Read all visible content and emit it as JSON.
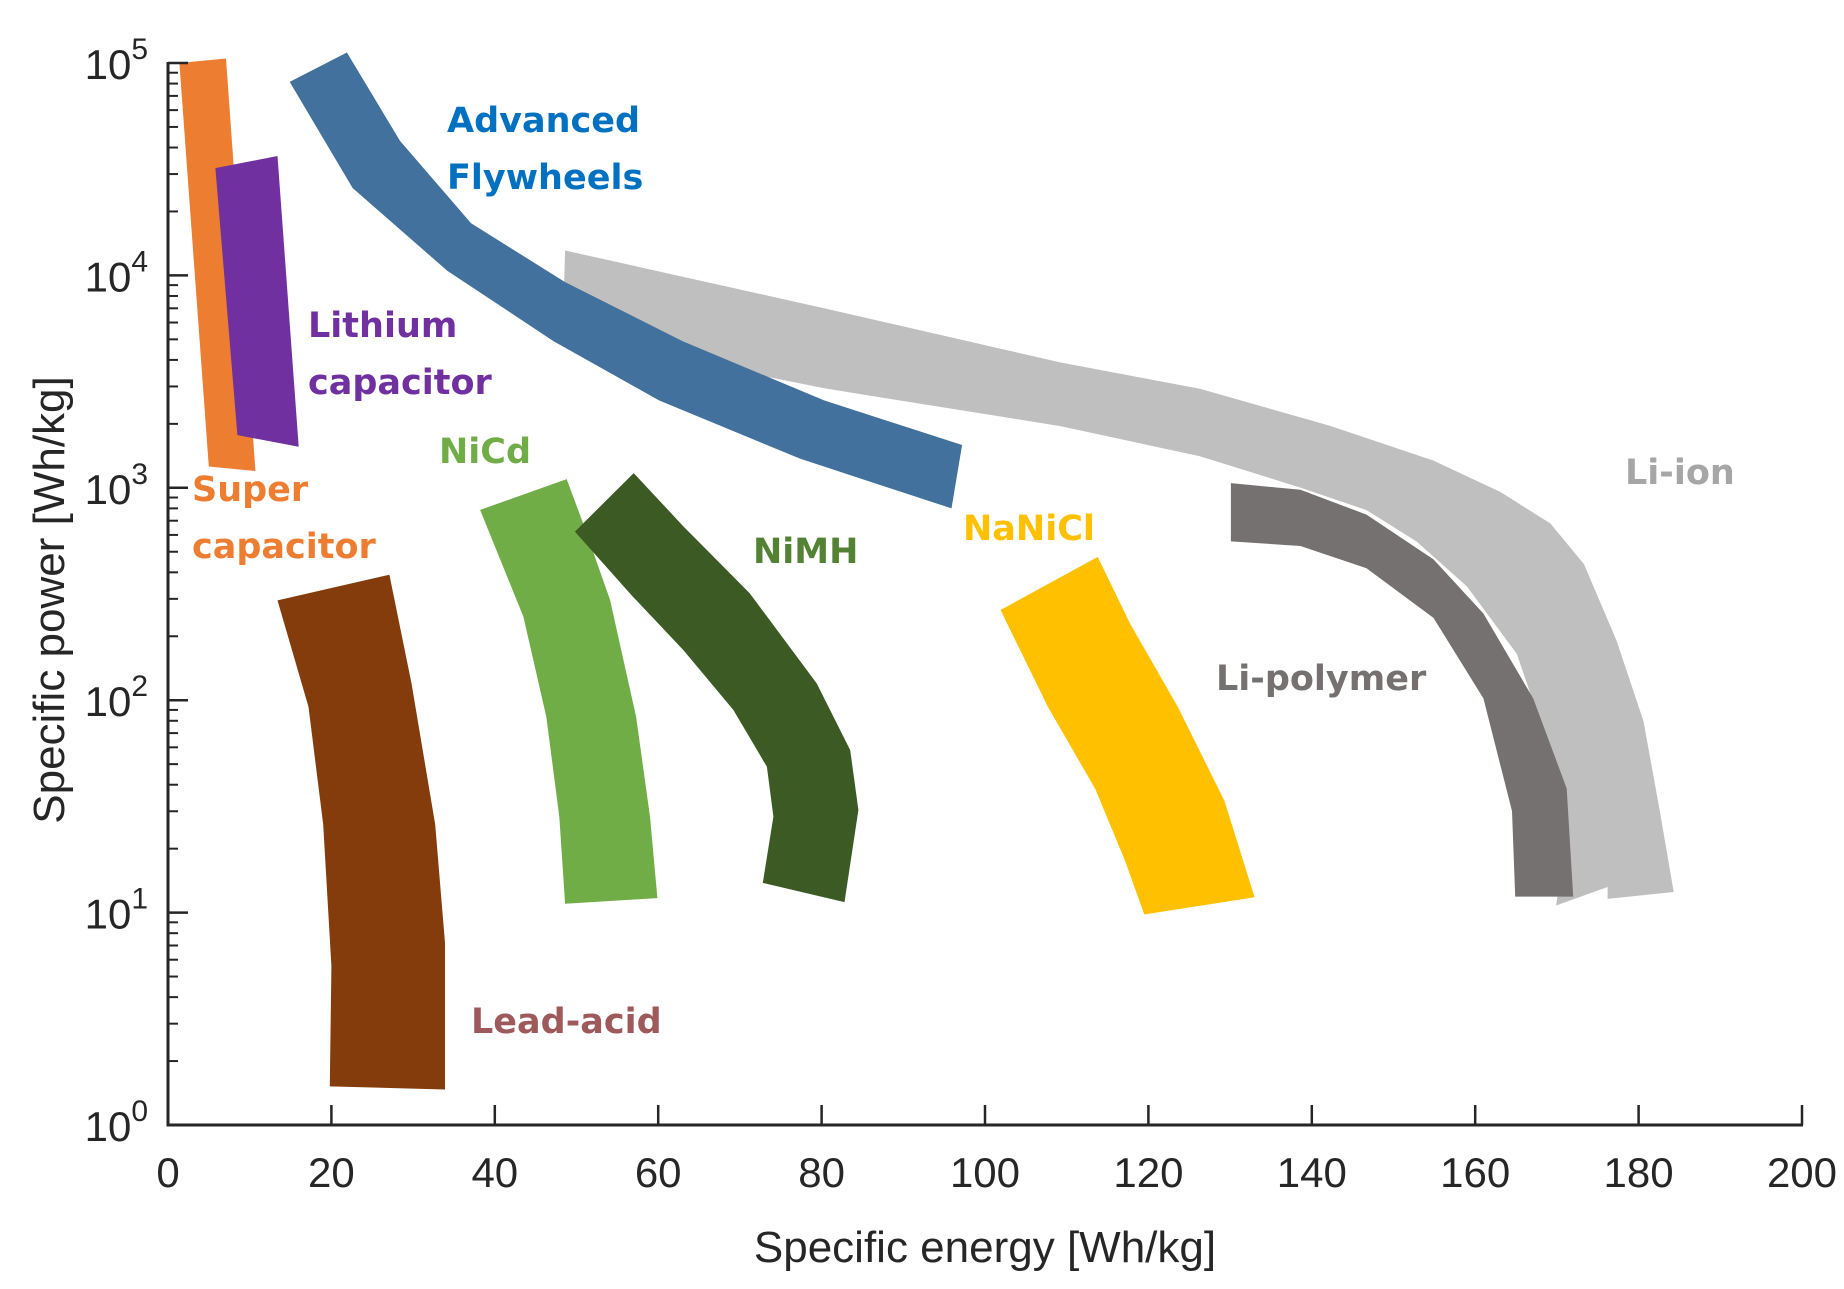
{
  "chart_data": {
    "type": "area",
    "xlabel": "Specific energy [Wh/kg]",
    "ylabel": "Specific power [Wh/kg]",
    "xlim": [
      0,
      200
    ],
    "ylim": [
      1,
      100000
    ],
    "yscale": "log",
    "grid": false,
    "x_ticks": [
      0,
      20,
      40,
      60,
      80,
      100,
      120,
      140,
      160,
      180,
      200
    ],
    "x_tick_labels": [
      "0",
      "20",
      "40",
      "60",
      "80",
      "100",
      "120",
      "140",
      "160",
      "180",
      "200"
    ],
    "y_ticks": [
      1,
      10,
      100,
      1000,
      10000,
      100000
    ],
    "y_tick_labels": [
      {
        "base": "10",
        "exp": "0"
      },
      {
        "base": "10",
        "exp": "1"
      },
      {
        "base": "10",
        "exp": "2"
      },
      {
        "base": "10",
        "exp": "3"
      },
      {
        "base": "10",
        "exp": "4"
      },
      {
        "base": "10",
        "exp": "5"
      }
    ],
    "regions": [
      {
        "name": "Li-ion",
        "label_lines": [
          "Li-ion"
        ],
        "color": "#BFBFBF",
        "label_color": "#A6A6A6",
        "polygon": [
          [
            48.6,
            13100
          ],
          [
            80.3,
            7010
          ],
          [
            109.2,
            3893
          ],
          [
            126.3,
            2925
          ],
          [
            142.2,
            1961
          ],
          [
            154.9,
            1343
          ],
          [
            163.1,
            955
          ],
          [
            169.2,
            679
          ],
          [
            173.3,
            438
          ],
          [
            177.3,
            191
          ],
          [
            180.6,
            79.6
          ],
          [
            182.6,
            30.1
          ],
          [
            184.3,
            12.5
          ],
          [
            176.2,
            11.6
          ],
          [
            176.2,
            13.2
          ],
          [
            169.9,
            10.8
          ],
          [
            171.2,
            23.6
          ],
          [
            169.2,
            56.7
          ],
          [
            165.1,
            165
          ],
          [
            159.0,
            343
          ],
          [
            152.8,
            559
          ],
          [
            146.7,
            785
          ],
          [
            138.6,
            1002
          ],
          [
            126.3,
            1409
          ],
          [
            109.2,
            1953
          ],
          [
            80.3,
            2940
          ],
          [
            48.3,
            5225
          ]
        ]
      },
      {
        "name": "Li-polymer",
        "label_lines": [
          "Li-polymer"
        ],
        "color": "#767171",
        "label_color": "#767171",
        "polygon": [
          [
            130.1,
            1052
          ],
          [
            138.6,
            979
          ],
          [
            146.7,
            748
          ],
          [
            154.9,
            460
          ],
          [
            161.0,
            256
          ],
          [
            167.1,
            102
          ],
          [
            171.2,
            38.4
          ],
          [
            172.0,
            11.9
          ],
          [
            164.9,
            11.9
          ],
          [
            164.5,
            30.1
          ],
          [
            161.0,
            102
          ],
          [
            154.9,
            244
          ],
          [
            146.7,
            418
          ],
          [
            138.6,
            532
          ],
          [
            130.1,
            559
          ]
        ]
      },
      {
        "name": "Advanced Flywheels",
        "label_lines": [
          "Advanced",
          "Flywheels"
        ],
        "color": "#41719C",
        "label_color": "#0070C0",
        "polygon": [
          [
            21.9,
            112000
          ],
          [
            28.4,
            43000
          ],
          [
            37.1,
            17600
          ],
          [
            48.6,
            9300
          ],
          [
            63.0,
            4900
          ],
          [
            80.3,
            2580
          ],
          [
            97.2,
            1590
          ],
          [
            95.9,
            800
          ],
          [
            77.4,
            1370
          ],
          [
            60.1,
            2580
          ],
          [
            47.2,
            4900
          ],
          [
            34.2,
            10500
          ],
          [
            22.6,
            25800
          ],
          [
            14.9,
            81500
          ]
        ]
      },
      {
        "name": "Super capacitor",
        "label_lines": [
          "Super",
          "capacitor"
        ],
        "color": "#ED7D31",
        "label_color": "#ED7D31",
        "polygon": [
          [
            1.4,
            100000
          ],
          [
            7.1,
            105000
          ],
          [
            10.7,
            1200
          ],
          [
            5.0,
            1260
          ]
        ]
      },
      {
        "name": "Lithium capacitor",
        "label_lines": [
          "Lithium",
          "capacitor"
        ],
        "color": "#7030A0",
        "label_color": "#7030A0",
        "polygon": [
          [
            5.8,
            32000
          ],
          [
            13.4,
            36500
          ],
          [
            16.0,
            1560
          ],
          [
            8.5,
            1770
          ]
        ]
      },
      {
        "name": "Lead-acid",
        "label_lines": [
          "Lead-acid"
        ],
        "color": "#843C0C",
        "label_color": "#9E5A5A",
        "polygon": [
          [
            13.4,
            295
          ],
          [
            27.1,
            390
          ],
          [
            29.8,
            120
          ],
          [
            32.7,
            26
          ],
          [
            33.9,
            7.2
          ],
          [
            33.9,
            1.47
          ],
          [
            19.8,
            1.52
          ],
          [
            20.0,
            5.6
          ],
          [
            19.0,
            26
          ],
          [
            17.2,
            93
          ]
        ]
      },
      {
        "name": "NiCd",
        "label_lines": [
          "NiCd"
        ],
        "color": "#70AD47",
        "label_color": "#70AD47",
        "polygon": [
          [
            38.2,
            787
          ],
          [
            48.8,
            1099
          ],
          [
            50.8,
            682
          ],
          [
            54.1,
            297
          ],
          [
            57.3,
            83.6
          ],
          [
            59.0,
            28.3
          ],
          [
            59.9,
            11.7
          ],
          [
            48.6,
            11.0
          ],
          [
            47.9,
            28.3
          ],
          [
            46.3,
            83.6
          ],
          [
            43.5,
            247
          ]
        ]
      },
      {
        "name": "NiMH",
        "label_lines": [
          "NiMH"
        ],
        "color": "#3B5A24",
        "label_color": "#548235",
        "polygon": [
          [
            49.8,
            622
          ],
          [
            57.0,
            1173
          ],
          [
            63.1,
            657
          ],
          [
            71.2,
            319
          ],
          [
            79.4,
            120
          ],
          [
            83.5,
            58.2
          ],
          [
            84.5,
            30.4
          ],
          [
            82.8,
            11.2
          ],
          [
            72.8,
            13.8
          ],
          [
            74.1,
            28.3
          ],
          [
            73.3,
            48.6
          ],
          [
            69.2,
            89.9
          ],
          [
            63.1,
            172
          ],
          [
            56.9,
            307
          ]
        ]
      },
      {
        "name": "NaNiCl",
        "label_lines": [
          "NaNiCl"
        ],
        "color": "#FFC000",
        "label_color": "#FFC000",
        "polygon": [
          [
            101.9,
            266
          ],
          [
            113.8,
            473
          ],
          [
            117.8,
            228
          ],
          [
            123.6,
            93
          ],
          [
            129.3,
            33.6
          ],
          [
            133.0,
            11.8
          ],
          [
            119.5,
            9.8
          ],
          [
            117.1,
            17.7
          ],
          [
            113.5,
            38.2
          ],
          [
            107.7,
            93
          ]
        ]
      }
    ]
  }
}
